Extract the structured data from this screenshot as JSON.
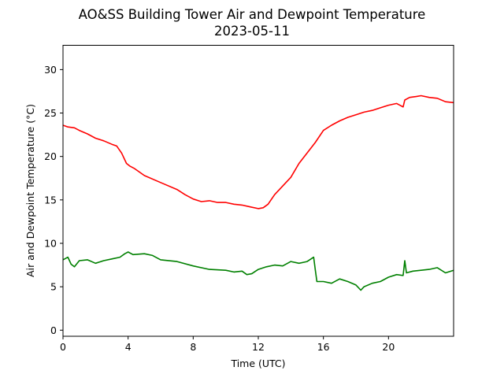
{
  "chart_data": {
    "type": "line",
    "title": "AO&SS Building Tower Air and Dewpoint Temperature",
    "subtitle": "2023-05-11",
    "xlabel": "Time (UTC)",
    "ylabel": "Air and Dewpoint Temperature (°C)",
    "xlim": [
      0,
      24
    ],
    "ylim": [
      -0.7,
      32.8
    ],
    "xticks": [
      0,
      4,
      8,
      12,
      16,
      20
    ],
    "yticks": [
      0,
      5,
      10,
      15,
      20,
      25,
      30
    ],
    "grid": false,
    "series": [
      {
        "color": "#ff0000",
        "x": [
          0,
          0.3,
          0.7,
          1,
          1.5,
          2,
          2.5,
          3,
          3.3,
          3.6,
          3.9,
          4.1,
          4.4,
          5,
          6,
          7,
          7.5,
          8,
          8.5,
          9,
          9.5,
          10,
          10.5,
          11,
          11.5,
          12,
          12.3,
          12.6,
          13,
          13.5,
          14,
          14.5,
          15,
          15.5,
          16,
          16.5,
          17,
          17.5,
          18,
          18.5,
          19,
          19.5,
          20,
          20.5,
          20.9,
          21,
          21.3,
          21.7,
          22,
          22.5,
          23,
          23.5,
          24
        ],
        "y": [
          23.6,
          23.4,
          23.3,
          23.0,
          22.6,
          22.1,
          21.8,
          21.4,
          21.2,
          20.4,
          19.2,
          18.9,
          18.6,
          17.8,
          17.0,
          16.2,
          15.6,
          15.1,
          14.8,
          14.9,
          14.7,
          14.7,
          14.5,
          14.4,
          14.2,
          14.0,
          14.1,
          14.5,
          15.6,
          16.6,
          17.6,
          19.2,
          20.4,
          21.6,
          23.0,
          23.6,
          24.1,
          24.5,
          24.8,
          25.1,
          25.3,
          25.6,
          25.9,
          26.1,
          25.7,
          26.5,
          26.8,
          26.9,
          27.0,
          26.8,
          26.7,
          26.3,
          26.2
        ]
      },
      {
        "color": "#008000",
        "x": [
          0,
          0.3,
          0.5,
          0.7,
          1,
          1.5,
          2,
          2.5,
          3,
          3.5,
          3.8,
          4,
          4.3,
          5,
          5.5,
          6,
          7,
          8,
          9,
          10,
          10.5,
          11,
          11.3,
          11.6,
          12,
          12.5,
          13,
          13.5,
          14,
          14.5,
          15,
          15.4,
          15.5,
          15.6,
          16,
          16.5,
          17,
          17.5,
          18,
          18.3,
          18.5,
          19,
          19.5,
          20,
          20.5,
          20.9,
          21.0,
          21.1,
          21.5,
          22,
          22.5,
          23,
          23.5,
          24
        ],
        "y": [
          8.1,
          8.4,
          7.6,
          7.3,
          8.0,
          8.1,
          7.7,
          8.0,
          8.2,
          8.4,
          8.8,
          9.0,
          8.7,
          8.8,
          8.6,
          8.1,
          7.9,
          7.4,
          7.0,
          6.9,
          6.7,
          6.8,
          6.4,
          6.5,
          7.0,
          7.3,
          7.5,
          7.4,
          7.9,
          7.7,
          7.9,
          8.4,
          7.0,
          5.6,
          5.6,
          5.4,
          5.9,
          5.6,
          5.2,
          4.6,
          5.0,
          5.4,
          5.6,
          6.1,
          6.4,
          6.3,
          8.0,
          6.6,
          6.8,
          6.9,
          7.0,
          7.2,
          6.6,
          6.9
        ]
      }
    ]
  }
}
